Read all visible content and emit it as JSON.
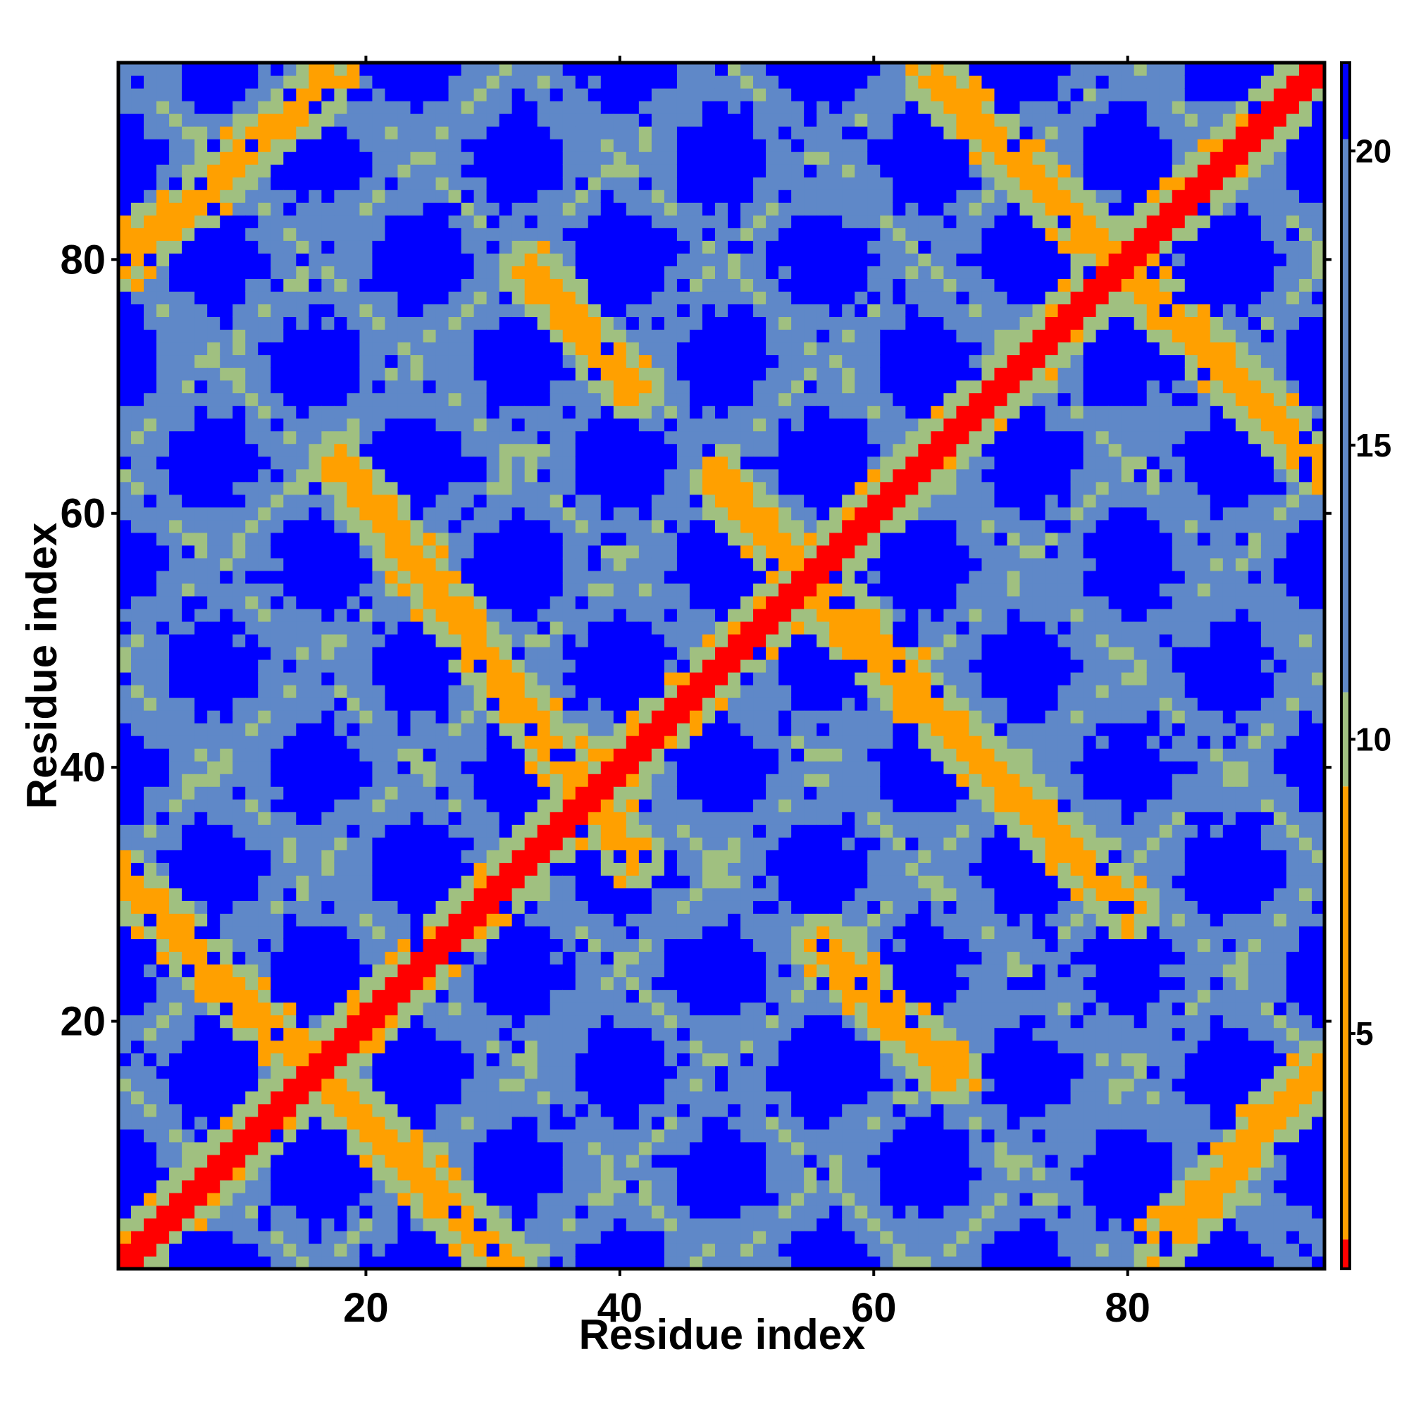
{
  "chart_data": {
    "type": "heatmap",
    "title": "",
    "xlabel": "Residue index",
    "ylabel": "Residue index",
    "n": 95,
    "xlim": [
      0.5,
      95.5
    ],
    "ylim": [
      0.5,
      95.5
    ],
    "x_ticks": [
      20,
      40,
      60,
      80
    ],
    "x_tick_labels": [
      "20",
      "40",
      "60",
      "80"
    ],
    "y_ticks": [
      20,
      40,
      60,
      80
    ],
    "y_tick_labels": [
      "20",
      "40",
      "60",
      "80"
    ],
    "colorbar": {
      "range": [
        1,
        21.5
      ],
      "ticks": [
        5,
        10,
        15,
        20
      ],
      "tick_labels": [
        "5",
        "10",
        "15",
        "20"
      ],
      "colors": {
        "low": "#ff0000",
        "orange": "#ffa000",
        "mid": "#a0c080",
        "steel": "#5f88c8",
        "high": "#0000ff"
      }
    },
    "structure": {
      "main_diagonal": "i = j, distance ~1 (red)",
      "anti_diagonal_bands": [
        {
          "from": [
            1,
            31
          ],
          "to": [
            31,
            1
          ]
        },
        {
          "from": [
            1,
            80
          ],
          "to": [
            17,
            94
          ]
        },
        {
          "from": [
            18,
            64
          ],
          "to": [
            41,
            33
          ]
        },
        {
          "from": [
            56,
            53
          ],
          "to": [
            80,
            29
          ]
        },
        {
          "from": [
            33,
            79
          ],
          "to": [
            41,
            70
          ]
        },
        {
          "from": [
            65,
            94
          ],
          "to": [
            95,
            64
          ]
        },
        {
          "from": [
            83,
            3
          ],
          "to": [
            95,
            16
          ]
        },
        {
          "from": [
            56,
            26
          ],
          "to": [
            66,
            16
          ]
        },
        {
          "from": [
            48,
            62
          ],
          "to": [
            62,
            48
          ]
        }
      ],
      "grid_period": 16,
      "far_distance_value": 21.5
    }
  }
}
